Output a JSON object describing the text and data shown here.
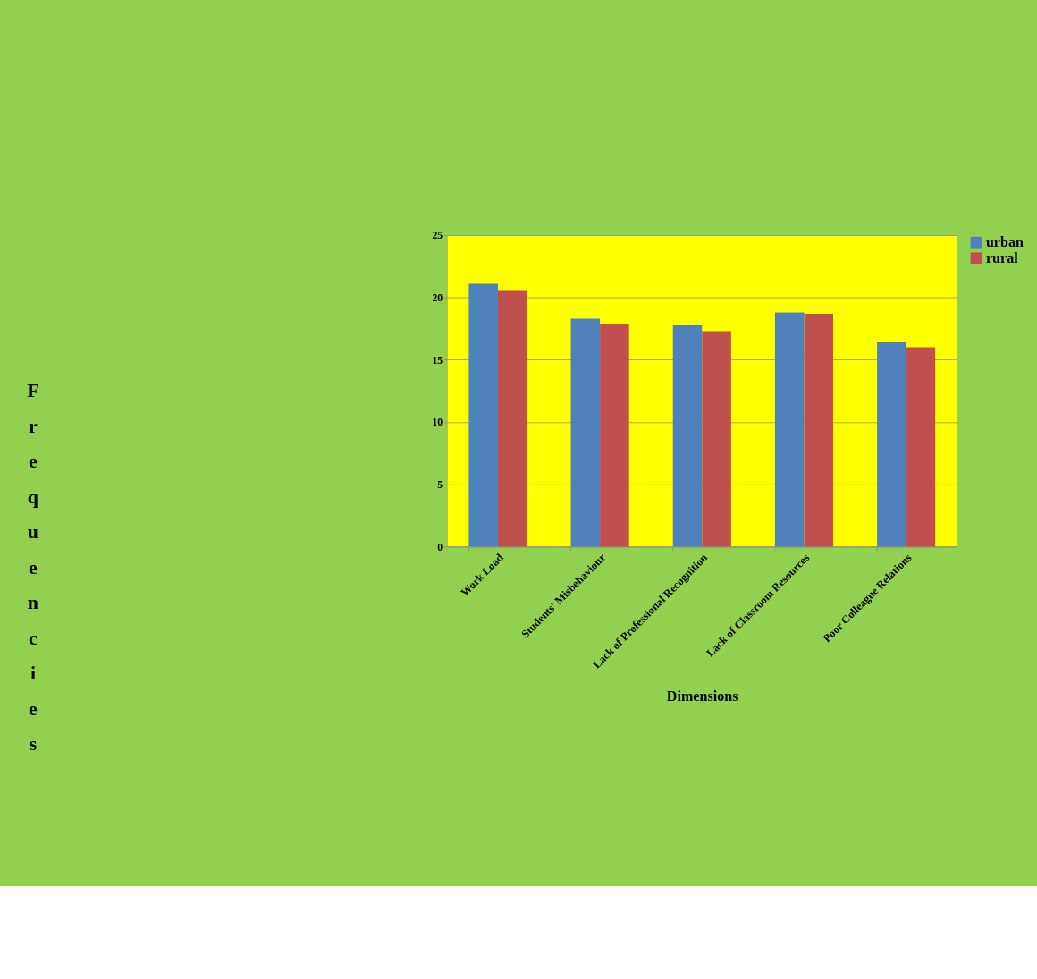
{
  "chart_data": {
    "type": "bar",
    "xlabel": "Dimensions",
    "ylabel": "Frequencies",
    "categories": [
      "Work Load",
      "Students' Misbehaviour",
      "Lack of Professional Recognition",
      "Lack of Classroom Resources",
      "Poor Colleague Relations"
    ],
    "series": [
      {
        "name": "urban",
        "color": "#4f81bd",
        "values": [
          21.1,
          18.3,
          17.8,
          18.8,
          16.4
        ]
      },
      {
        "name": "rural",
        "color": "#c0504d",
        "values": [
          20.6,
          17.9,
          17.3,
          18.7,
          16.0
        ]
      }
    ],
    "ylim": [
      0,
      25
    ],
    "yticks": [
      0,
      5,
      10,
      15,
      20,
      25
    ],
    "grid": "y",
    "legend": "right"
  }
}
